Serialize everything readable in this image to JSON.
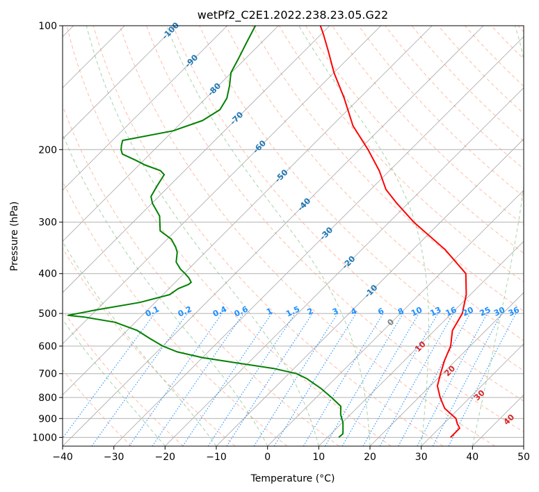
{
  "chart_data": {
    "type": "line",
    "title": "wetPf2_C2E1.2022.238.23.05.G22",
    "xlabel": "Temperature (°C)",
    "ylabel": "Pressure (hPa)",
    "xlim": [
      -40,
      50
    ],
    "ylim": [
      1050,
      100
    ],
    "y_scale": "log",
    "grid": true,
    "x_ticks": [
      -40,
      -30,
      -20,
      -10,
      0,
      10,
      20,
      30,
      40,
      50
    ],
    "y_ticks": [
      100,
      200,
      300,
      400,
      500,
      600,
      700,
      800,
      900,
      1000
    ],
    "skew": "skew-T log-p, isotherms skewed 45°",
    "colors": {
      "temperature": "#ff0000",
      "dewpoint": "#008000",
      "dry_adiabats": "#ff9f80",
      "moist_adiabats": "#80c080",
      "mixing_ratio": "#1f8fff",
      "isotherm_grid": "#808080",
      "isobar_grid": "#b0b0b0",
      "label_blue": "#1f77b4",
      "label_red": "#d62728"
    },
    "series": [
      {
        "role": "temperature",
        "p": [
          1000,
          985,
          950,
          925,
          900,
          850,
          800,
          750,
          700,
          650,
          600,
          550,
          500,
          450,
          400,
          350,
          300,
          270,
          250,
          225,
          200,
          175,
          150,
          130,
          115,
          105,
          100
        ],
        "t": [
          34,
          34,
          34,
          32.6,
          31.4,
          27.2,
          24.2,
          21.4,
          19.6,
          17.8,
          16.2,
          13.5,
          12.1,
          9.2,
          5.0,
          -3.7,
          -15.2,
          -22.2,
          -27.0,
          -32.0,
          -38.3,
          -45.9,
          -53.0,
          -60.0,
          -65.4,
          -69.5,
          -71.8
        ]
      },
      {
        "role": "dewpoint",
        "p": [
          1000,
          980,
          960,
          920,
          880,
          840,
          800,
          760,
          720,
          700,
          680,
          660,
          640,
          620,
          600,
          575,
          550,
          525,
          510,
          505,
          490,
          470,
          450,
          435,
          425,
          420,
          410,
          400,
          390,
          375,
          355,
          345,
          330,
          315,
          290,
          270,
          260,
          245,
          230,
          225,
          218,
          212,
          205,
          200,
          195,
          190,
          180,
          170,
          160,
          150,
          140,
          130,
          120,
          110,
          100
        ],
        "td": [
          12.2,
          12.3,
          11.6,
          10.1,
          8.1,
          6.5,
          3.0,
          -0.9,
          -5.5,
          -8.5,
          -14.0,
          -22.0,
          -30.0,
          -36.0,
          -40.0,
          -44.0,
          -48.0,
          -54.0,
          -61.0,
          -64.5,
          -60.0,
          -53.0,
          -48.7,
          -48.2,
          -47.0,
          -46.9,
          -48.2,
          -49.8,
          -51.6,
          -53.8,
          -55.5,
          -56.8,
          -59.2,
          -63.0,
          -66.0,
          -69.9,
          -71.5,
          -72.4,
          -73.2,
          -74.7,
          -78.8,
          -81.7,
          -85.4,
          -86.5,
          -87.3,
          -88.0,
          -80.0,
          -76.3,
          -75.0,
          -75.9,
          -77.8,
          -80.1,
          -81.4,
          -82.9,
          -84.5
        ]
      }
    ],
    "isotherm_labels": [
      -100,
      -90,
      -80,
      -70,
      -60,
      -50,
      -40,
      -30,
      -20,
      -10
    ],
    "mixing_ratio_labels": [
      "0.1",
      "0.2",
      "0.4",
      "0.6",
      "1",
      "1.5",
      "2",
      "3",
      "4",
      "6",
      "8",
      "10",
      "13",
      "16",
      "20",
      "25",
      "30",
      "36"
    ],
    "dry_adiabat_labels": [
      "0",
      "10",
      "20",
      "30",
      "40"
    ]
  }
}
